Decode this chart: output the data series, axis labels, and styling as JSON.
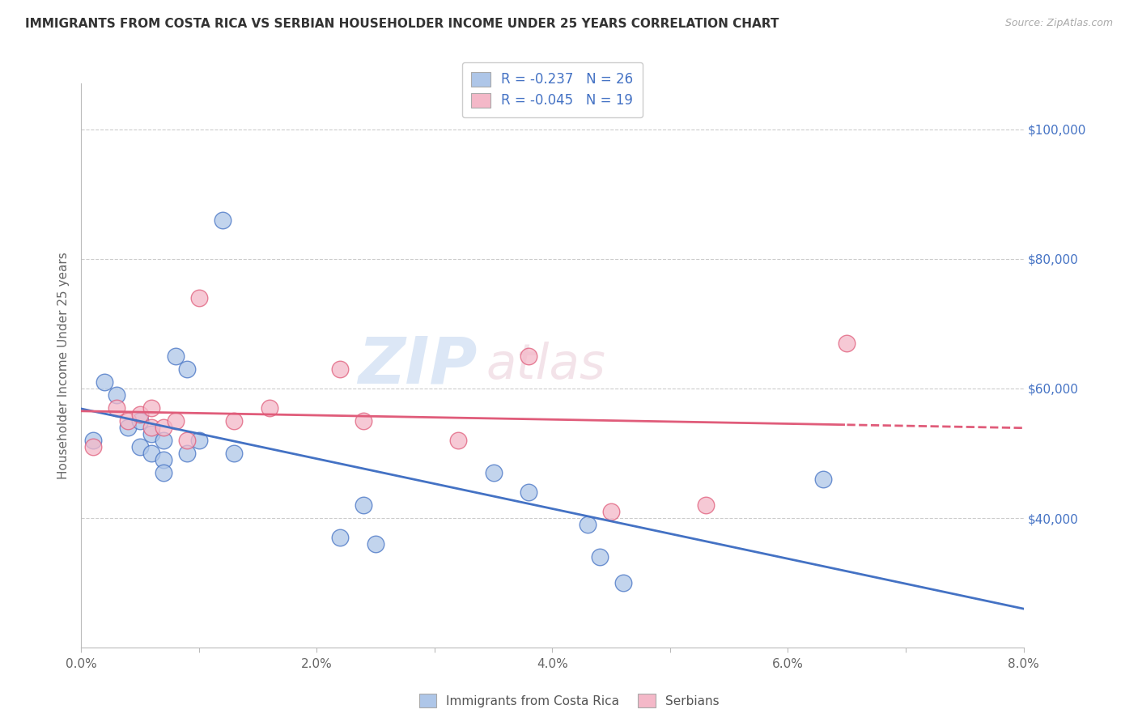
{
  "title": "IMMIGRANTS FROM COSTA RICA VS SERBIAN HOUSEHOLDER INCOME UNDER 25 YEARS CORRELATION CHART",
  "source": "Source: ZipAtlas.com",
  "ylabel": "Householder Income Under 25 years",
  "x_min": 0.0,
  "x_max": 0.08,
  "y_min": 20000,
  "y_max": 107000,
  "y_ticks": [
    40000,
    60000,
    80000,
    100000
  ],
  "y_tick_labels": [
    "$40,000",
    "$60,000",
    "$80,000",
    "$100,000"
  ],
  "x_tick_labels": [
    "0.0%",
    "",
    "2.0%",
    "",
    "4.0%",
    "",
    "6.0%",
    "",
    "8.0%"
  ],
  "x_ticks": [
    0.0,
    0.01,
    0.02,
    0.03,
    0.04,
    0.05,
    0.06,
    0.07,
    0.08
  ],
  "legend_label1": "Immigrants from Costa Rica",
  "legend_label2": "Serbians",
  "r1": "-0.237",
  "n1": "26",
  "r2": "-0.045",
  "n2": "19",
  "color1": "#aec6e8",
  "color2": "#f4b8c8",
  "line_color1": "#4472c4",
  "line_color2": "#e05c7a",
  "watermark_zip": "ZIP",
  "watermark_atlas": "atlas",
  "costa_rica_x": [
    0.001,
    0.002,
    0.003,
    0.004,
    0.005,
    0.005,
    0.006,
    0.006,
    0.007,
    0.007,
    0.007,
    0.008,
    0.009,
    0.009,
    0.01,
    0.012,
    0.013,
    0.022,
    0.024,
    0.025,
    0.035,
    0.038,
    0.043,
    0.044,
    0.046,
    0.063
  ],
  "costa_rica_y": [
    52000,
    61000,
    59000,
    54000,
    55000,
    51000,
    53000,
    50000,
    52000,
    49000,
    47000,
    65000,
    63000,
    50000,
    52000,
    86000,
    50000,
    37000,
    42000,
    36000,
    47000,
    44000,
    39000,
    34000,
    30000,
    46000
  ],
  "serbian_x": [
    0.001,
    0.003,
    0.004,
    0.005,
    0.006,
    0.006,
    0.007,
    0.008,
    0.009,
    0.01,
    0.013,
    0.016,
    0.022,
    0.024,
    0.032,
    0.038,
    0.045,
    0.053,
    0.065
  ],
  "serbian_y": [
    51000,
    57000,
    55000,
    56000,
    57000,
    54000,
    54000,
    55000,
    52000,
    74000,
    55000,
    57000,
    63000,
    55000,
    52000,
    65000,
    41000,
    42000,
    67000
  ]
}
